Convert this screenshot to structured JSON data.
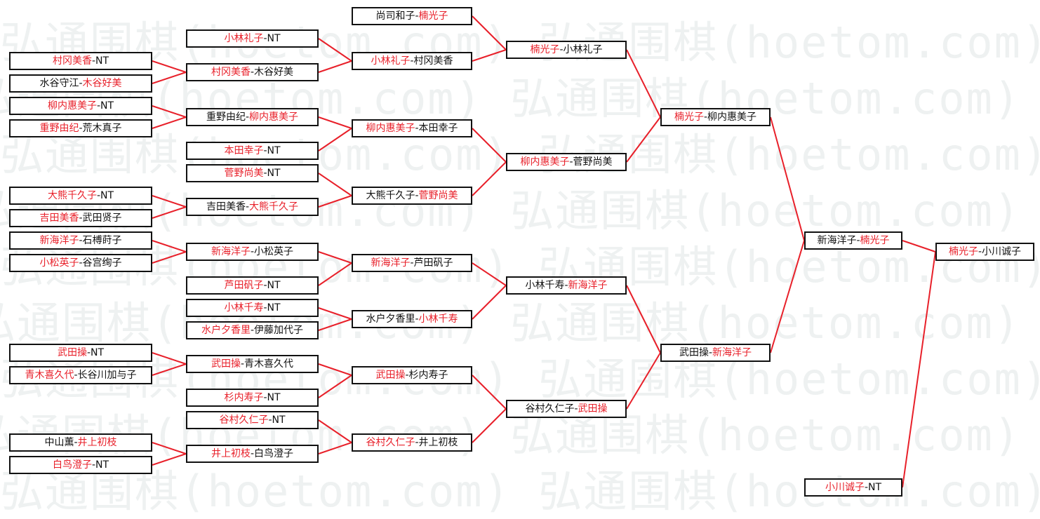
{
  "watermark": "弘通围棋(hoetom.com)",
  "colors": {
    "winner": "#e8202a",
    "loser": "#111111",
    "line": "#e8202a",
    "watermark": "#eef1f1"
  },
  "separator": "-",
  "matches": [
    {
      "left": "村冈美香",
      "right": "NT",
      "winner": "left"
    },
    {
      "left": "水谷守江",
      "right": "木谷好美",
      "winner": "right"
    },
    {
      "left": "柳内惠美子",
      "right": "NT",
      "winner": "left"
    },
    {
      "left": "重野由纪",
      "right": "荒木真子",
      "winner": "left"
    },
    {
      "left": "大熊千久子",
      "right": "NT",
      "winner": "left"
    },
    {
      "left": "吉田美香",
      "right": "武田贤子",
      "winner": "left"
    },
    {
      "left": "新海洋子",
      "right": "石榑莳子",
      "winner": "left"
    },
    {
      "left": "小松英子",
      "right": "谷宫绚子",
      "winner": "left"
    },
    {
      "left": "武田操",
      "right": "NT",
      "winner": "left"
    },
    {
      "left": "青木喜久代",
      "right": "长谷川加与子",
      "winner": "left"
    },
    {
      "left": "中山薫",
      "right": "井上初枝",
      "winner": "right"
    },
    {
      "left": "白鸟澄子",
      "right": "NT",
      "winner": "left"
    },
    {
      "left": "小林礼子",
      "right": "NT",
      "winner": "left"
    },
    {
      "left": "村冈美香",
      "right": "木谷好美",
      "winner": "left"
    },
    {
      "left": "重野由纪",
      "right": "柳内惠美子",
      "winner": "right"
    },
    {
      "left": "本田幸子",
      "right": "NT",
      "winner": "left"
    },
    {
      "left": "菅野尚美",
      "right": "NT",
      "winner": "left"
    },
    {
      "left": "吉田美香",
      "right": "大熊千久子",
      "winner": "right"
    },
    {
      "left": "新海洋子",
      "right": "小松英子",
      "winner": "left"
    },
    {
      "left": "芦田矾子",
      "right": "NT",
      "winner": "left"
    },
    {
      "left": "小林千寿",
      "right": "NT",
      "winner": "left"
    },
    {
      "left": "水户夕香里",
      "right": "伊藤加代子",
      "winner": "left"
    },
    {
      "left": "武田操",
      "right": "青木喜久代",
      "winner": "left"
    },
    {
      "left": "杉内寿子",
      "right": "NT",
      "winner": "left"
    },
    {
      "left": "谷村久仁子",
      "right": "NT",
      "winner": "left"
    },
    {
      "left": "井上初枝",
      "right": "白鸟澄子",
      "winner": "left"
    },
    {
      "left": "尚司和子",
      "right": "楠光子",
      "winner": "right"
    },
    {
      "left": "小林礼子",
      "right": "村冈美香",
      "winner": "left"
    },
    {
      "left": "柳内惠美子",
      "right": "本田幸子",
      "winner": "left"
    },
    {
      "left": "大熊千久子",
      "right": "菅野尚美",
      "winner": "right"
    },
    {
      "left": "新海洋子",
      "right": "芦田矾子",
      "winner": "left"
    },
    {
      "left": "水户夕香里",
      "right": "小林千寿",
      "winner": "right"
    },
    {
      "left": "武田操",
      "right": "杉内寿子",
      "winner": "left"
    },
    {
      "left": "谷村久仁子",
      "right": "井上初枝",
      "winner": "left"
    },
    {
      "left": "楠光子",
      "right": "小林礼子",
      "winner": "left"
    },
    {
      "left": "柳内惠美子",
      "right": "菅野尚美",
      "winner": "left"
    },
    {
      "left": "小林千寿",
      "right": "新海洋子",
      "winner": "right"
    },
    {
      "left": "谷村久仁子",
      "right": "武田操",
      "winner": "right"
    },
    {
      "left": "楠光子",
      "right": "柳内惠美子",
      "winner": "left"
    },
    {
      "left": "武田操",
      "right": "新海洋子",
      "winner": "right"
    },
    {
      "left": "新海洋子",
      "right": "楠光子",
      "winner": "right"
    },
    {
      "left": "小川诚子",
      "right": "NT",
      "winner": "left"
    },
    {
      "left": "楠光子",
      "right": "小川诚子",
      "winner": "left"
    }
  ]
}
